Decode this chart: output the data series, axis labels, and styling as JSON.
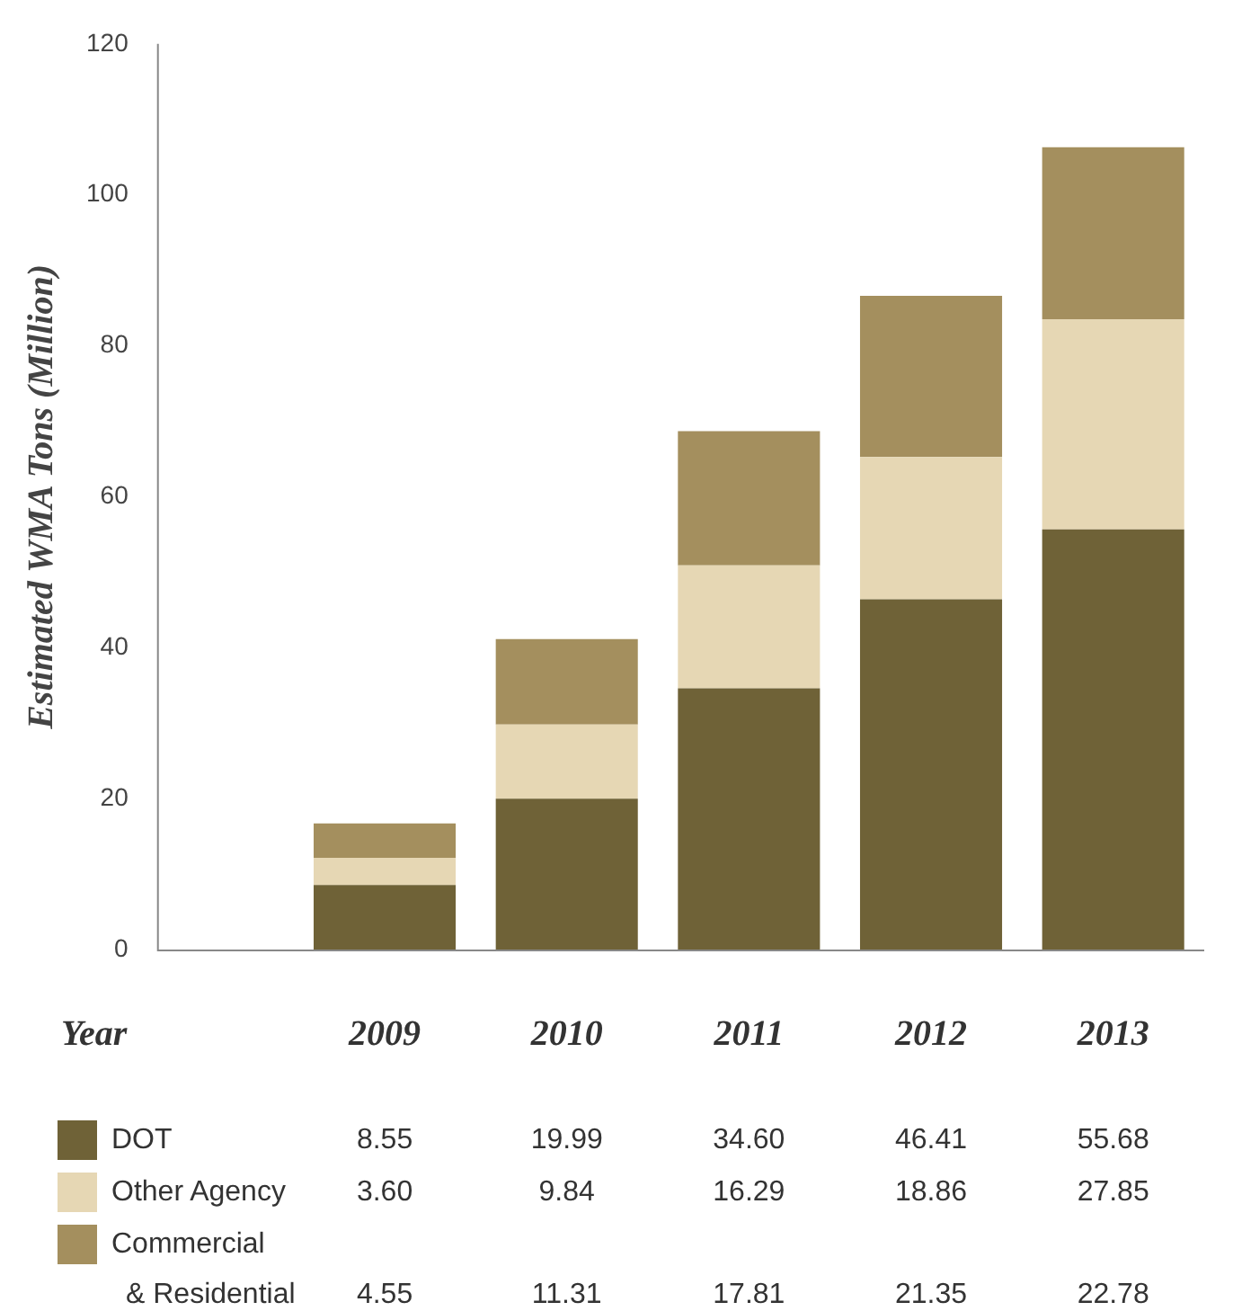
{
  "chart_data": {
    "type": "bar",
    "stacked": true,
    "ylabel": "Estimated WMA Tons (Million)",
    "xlabel": "Year",
    "categories": [
      "2009",
      "2010",
      "2011",
      "2012",
      "2013"
    ],
    "series": [
      {
        "name": "DOT",
        "color": "#6f6237",
        "values": [
          8.55,
          19.99,
          34.6,
          46.41,
          55.68
        ],
        "value_labels": [
          "8.55",
          "19.99",
          "34.60",
          "46.41",
          "55.68"
        ]
      },
      {
        "name": "Other Agency",
        "color": "#e6d7b4",
        "values": [
          3.6,
          9.84,
          16.29,
          18.86,
          27.85
        ],
        "value_labels": [
          "3.60",
          "9.84",
          "16.29",
          "18.86",
          "27.85"
        ]
      },
      {
        "name": "Commercial & Residential",
        "color": "#a48f5e",
        "values": [
          4.55,
          11.31,
          17.81,
          21.35,
          22.78
        ],
        "value_labels": [
          "4.55",
          "11.31",
          "17.81",
          "21.35",
          "22.78"
        ]
      }
    ],
    "ylim": [
      0,
      120
    ],
    "yticks": [
      0,
      20,
      40,
      60,
      80,
      100,
      120
    ],
    "grid": false,
    "legend": "bottom left"
  }
}
